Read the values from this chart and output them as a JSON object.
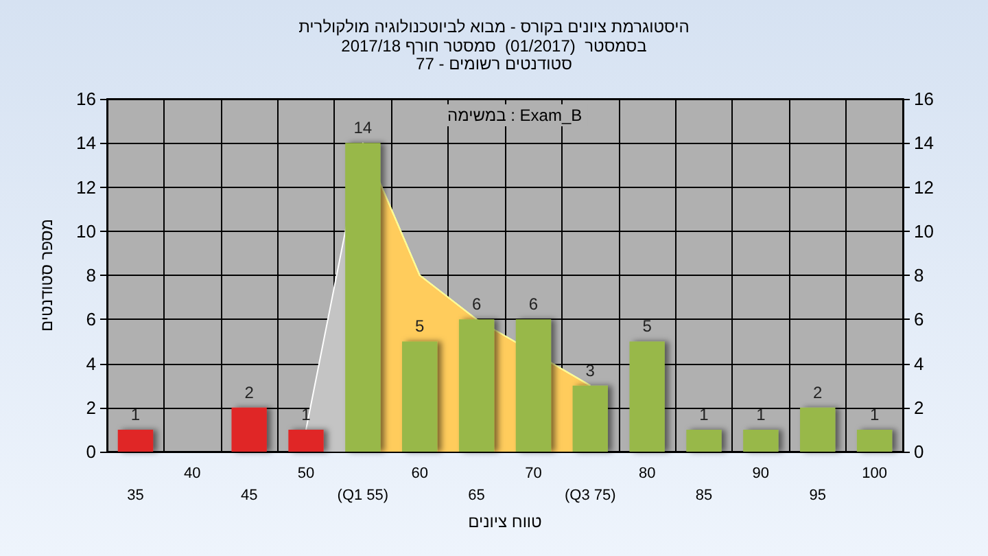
{
  "chart_data": {
    "type": "bar",
    "title": "היסטוגרמת ציונים בקורס - מבוא לביוטכנולוגיה מולקולרית",
    "subtitle": "בסמסטר  (01/2017)  סמסטר חורף 2017/18\nסטודנטים רשומים - 77",
    "xlabel": "טווח ציונים",
    "ylabel": "מספר סטודנטים",
    "categories": [
      "35",
      "40",
      "45",
      "50",
      "(Q1 55)",
      "60",
      "65",
      "70",
      "(Q3 75)",
      "80",
      "85",
      "90",
      "95",
      "100"
    ],
    "series": [
      {
        "type": "area",
        "color": "#c4c4c4",
        "values": [
          null,
          null,
          null,
          1,
          14,
          8,
          6,
          null,
          3,
          null,
          null,
          null,
          null,
          null
        ]
      },
      {
        "type": "area",
        "color": "#ffcc5c",
        "values": [
          null,
          null,
          null,
          null,
          14,
          8,
          6,
          null,
          3,
          null,
          null,
          null,
          null,
          null
        ]
      },
      {
        "values": [
          1,
          0,
          2,
          1,
          14,
          5,
          6,
          6,
          3,
          5,
          1,
          1,
          2,
          1
        ],
        "colors": [
          "#e02828",
          "#e02828",
          "#e02828",
          "#e02828",
          "#98b848",
          "#98b848",
          "#98b848",
          "#98b848",
          "#98b848",
          "#98b848",
          "#98b848",
          "#98b848",
          "#98b848",
          "#98b848"
        ],
        "value_labels": [
          "1",
          null,
          "2",
          "1",
          "14",
          "5",
          "6",
          "6",
          "3",
          "5",
          "1",
          "1",
          "2",
          "1"
        ]
      }
    ],
    "annotations": [
      "במשימה : Exam_B"
    ],
    "ylim": [
      0,
      16
    ],
    "yticks": [
      0,
      2,
      4,
      6,
      8,
      10,
      12,
      14,
      16
    ],
    "y2lim": [
      0,
      16
    ],
    "y2ticks": [
      0,
      2,
      4,
      6,
      8,
      10,
      12,
      14,
      16
    ],
    "grid": true
  }
}
